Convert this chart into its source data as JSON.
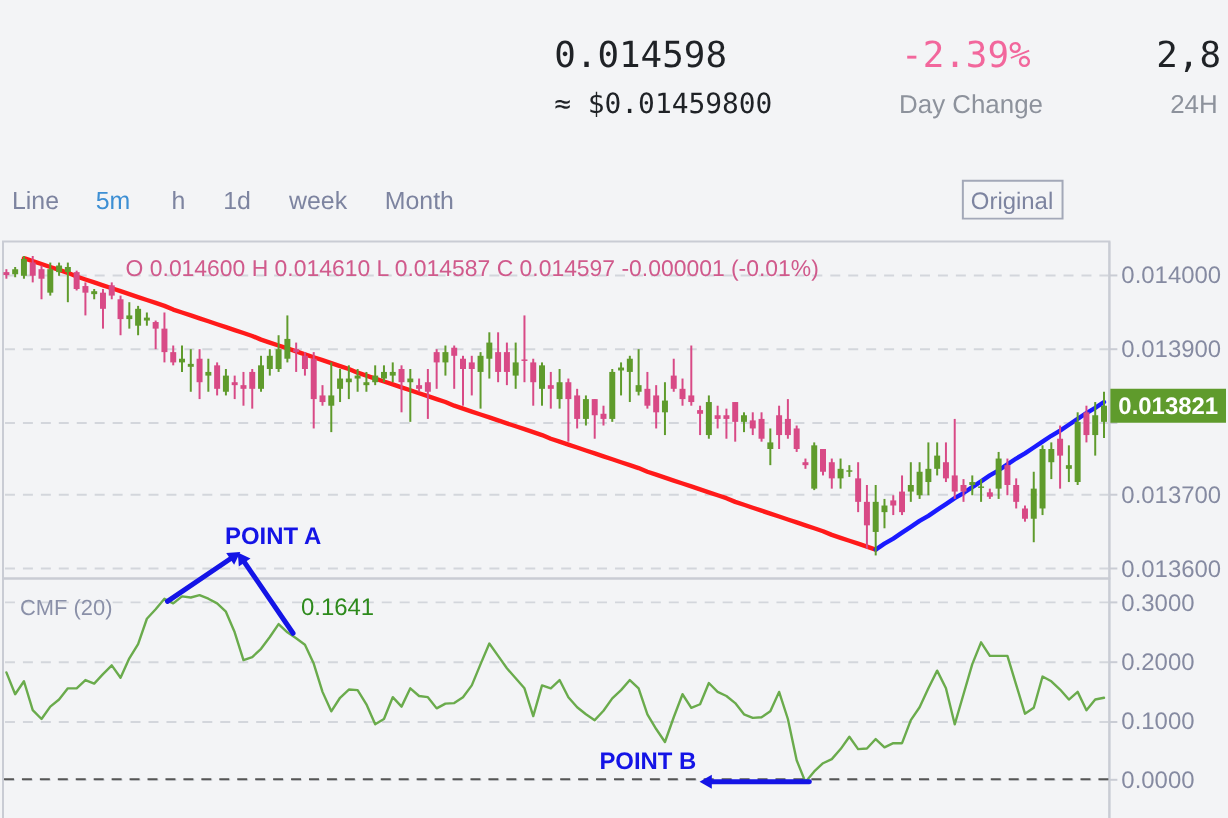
{
  "chart_data": [
    {
      "type": "other",
      "annotations": [
        "0.014598",
        "≈ $0.01459800",
        "-2.39%",
        "Day Change",
        "2,8",
        "24H",
        "Line",
        "5m",
        "h",
        "1d",
        "week",
        "Month",
        "Original"
      ]
    },
    {
      "type": "candlestick",
      "categories": [
        null,
        null,
        null,
        null,
        null,
        null,
        null,
        null,
        null,
        null,
        null,
        null,
        null,
        null,
        null,
        null,
        null,
        null,
        null,
        null,
        null,
        null,
        null,
        null,
        null,
        null,
        null,
        null,
        null,
        null,
        null,
        null,
        null,
        null,
        null,
        null,
        null,
        null,
        null,
        null,
        null,
        null,
        null,
        null,
        null,
        null,
        null,
        null,
        null,
        null,
        null,
        null,
        null,
        null,
        null,
        null,
        null,
        null,
        null,
        null,
        null,
        null,
        null,
        null,
        null,
        null,
        null,
        null,
        null,
        null,
        null,
        null,
        null,
        null,
        null,
        null,
        null,
        null,
        null,
        null,
        null,
        null,
        null,
        null,
        null,
        null,
        null,
        null,
        null,
        null,
        null,
        null,
        null,
        null,
        null,
        null,
        null,
        null,
        null,
        null,
        null,
        null,
        null,
        null,
        null,
        null,
        null,
        null,
        null,
        null,
        null,
        null,
        null,
        null,
        null,
        null,
        null,
        null,
        null,
        null,
        null,
        null,
        null,
        null,
        null,
        null
      ],
      "ohlc": [
        [
          0.014003,
          0.014007,
          0.013994,
          0.013999
        ],
        [
          0.014,
          0.01401,
          0.013996,
          0.014007
        ],
        [
          0.013998,
          0.014025,
          0.013994,
          0.014021
        ],
        [
          0.014016,
          0.014025,
          0.013989,
          0.013998
        ],
        [
          0.014007,
          0.014012,
          0.013966,
          0.013994
        ],
        [
          0.013975,
          0.014016,
          0.013971,
          0.014007
        ],
        [
          0.014003,
          0.014016,
          0.013998,
          0.014012
        ],
        [
          0.014003,
          0.014016,
          0.013962,
          0.01401
        ],
        [
          0.014003,
          0.014005,
          0.013978,
          0.01398
        ],
        [
          0.013984,
          0.013989,
          0.013944,
          0.013975
        ],
        [
          0.013973,
          0.01398,
          0.013966,
          0.013977
        ],
        [
          0.013975,
          0.01398,
          0.013926,
          0.013953
        ],
        [
          0.013985,
          0.013989,
          0.013966,
          0.013971
        ],
        [
          0.013966,
          0.013971,
          0.013917,
          0.013939
        ],
        [
          0.013939,
          0.013962,
          0.013926,
          0.013944
        ],
        [
          0.01393,
          0.013957,
          0.013917,
          0.013953
        ],
        [
          0.013937,
          0.013948,
          0.01393,
          0.013941
        ],
        [
          0.013935,
          0.013937,
          0.013898,
          0.013926
        ],
        [
          0.013926,
          0.013948,
          0.01388,
          0.013894
        ],
        [
          0.013894,
          0.013903,
          0.013876,
          0.01388
        ],
        [
          0.01388,
          0.013903,
          0.013867,
          0.013885
        ],
        [
          0.013874,
          0.013898,
          0.01384,
          0.013878
        ],
        [
          0.013885,
          0.013898,
          0.01383,
          0.013853
        ],
        [
          0.013862,
          0.013885,
          0.01384,
          0.013867
        ],
        [
          0.013876,
          0.01388,
          0.013835,
          0.013844
        ],
        [
          0.01384,
          0.013871,
          0.013835,
          0.013862
        ],
        [
          0.013853,
          0.013862,
          0.01383,
          0.013849
        ],
        [
          0.013849,
          0.013867,
          0.013821,
          0.013844
        ],
        [
          0.013867,
          0.013871,
          0.013817,
          0.013844
        ],
        [
          0.013844,
          0.013889,
          0.01384,
          0.013876
        ],
        [
          0.013871,
          0.013898,
          0.013862,
          0.013889
        ],
        [
          0.013871,
          0.013917,
          0.013867,
          0.013898
        ],
        [
          0.013885,
          0.013944,
          0.01388,
          0.013912
        ],
        [
          0.013898,
          0.013907,
          0.013867,
          0.013894
        ],
        [
          0.013889,
          0.013894,
          0.013862,
          0.013871
        ],
        [
          0.013885,
          0.013894,
          0.01379,
          0.01383
        ],
        [
          0.013835,
          0.013849,
          0.013821,
          0.013826
        ],
        [
          0.013821,
          0.01388,
          0.013785,
          0.013835
        ],
        [
          0.013844,
          0.013871,
          0.013826,
          0.013858
        ],
        [
          0.013853,
          0.013876,
          0.01383,
          0.013858
        ],
        [
          0.013858,
          0.013871,
          0.01384,
          0.013862
        ],
        [
          0.013849,
          0.013867,
          0.01384,
          0.013853
        ],
        [
          0.013853,
          0.013876,
          0.013849,
          0.013862
        ],
        [
          0.013858,
          0.013876,
          0.013853,
          0.013867
        ],
        [
          0.013862,
          0.01388,
          0.013853,
          0.013867
        ],
        [
          0.013871,
          0.013876,
          0.013812,
          0.013853
        ],
        [
          0.013853,
          0.013871,
          0.013799,
          0.013858
        ],
        [
          0.013849,
          0.013858,
          0.01384,
          0.013844
        ],
        [
          0.013853,
          0.013871,
          0.013803,
          0.01384
        ],
        [
          0.013894,
          0.013898,
          0.013844,
          0.01388
        ],
        [
          0.01388,
          0.013903,
          0.013862,
          0.013894
        ],
        [
          0.0139,
          0.013903,
          0.013844,
          0.013889
        ],
        [
          0.013885,
          0.013889,
          0.013821,
          0.013871
        ],
        [
          0.01388,
          0.013889,
          0.013835,
          0.013871
        ],
        [
          0.013867,
          0.013894,
          0.013817,
          0.013889
        ],
        [
          0.013885,
          0.013921,
          0.013858,
          0.013907
        ],
        [
          0.013894,
          0.013921,
          0.013853,
          0.013867
        ],
        [
          0.013894,
          0.013907,
          0.013849,
          0.013867
        ],
        [
          0.013862,
          0.013907,
          0.013844,
          0.01388
        ],
        [
          0.013884,
          0.013944,
          0.013853,
          0.013882
        ],
        [
          0.01388,
          0.013885,
          0.013821,
          0.013853
        ],
        [
          0.013844,
          0.01388,
          0.013821,
          0.013876
        ],
        [
          0.013849,
          0.013867,
          0.013817,
          0.013844
        ],
        [
          0.01383,
          0.013871,
          0.013817,
          0.013853
        ],
        [
          0.013853,
          0.013858,
          0.013772,
          0.01383
        ],
        [
          0.013835,
          0.013844,
          0.01379,
          0.013803
        ],
        [
          0.013803,
          0.013835,
          0.013794,
          0.01383
        ],
        [
          0.01383,
          0.01383,
          0.013776,
          0.013808
        ],
        [
          0.01381,
          0.013821,
          0.013794,
          0.013803
        ],
        [
          0.013803,
          0.013871,
          0.013799,
          0.013867
        ],
        [
          0.013869,
          0.01388,
          0.013835,
          0.013873
        ],
        [
          0.013867,
          0.013889,
          0.013826,
          0.013885
        ],
        [
          0.01384,
          0.013898,
          0.013835,
          0.013849
        ],
        [
          0.013844,
          0.013867,
          0.013817,
          0.013821
        ],
        [
          0.013835,
          0.013849,
          0.01379,
          0.013812
        ],
        [
          0.013812,
          0.013853,
          0.013781,
          0.013828
        ],
        [
          0.013862,
          0.013885,
          0.01384,
          0.013844
        ],
        [
          0.013844,
          0.013858,
          0.013821,
          0.01383
        ],
        [
          0.013835,
          0.013903,
          0.013821,
          0.013826
        ],
        [
          0.013815,
          0.013821,
          0.013781,
          0.01381
        ],
        [
          0.013781,
          0.013835,
          0.013776,
          0.013826
        ],
        [
          0.013808,
          0.013821,
          0.01379,
          0.013803
        ],
        [
          0.013808,
          0.013817,
          0.013776,
          0.013803
        ],
        [
          0.013826,
          0.013826,
          0.013772,
          0.013799
        ],
        [
          0.013799,
          0.013812,
          0.013785,
          0.013808
        ],
        [
          0.013801,
          0.013812,
          0.013781,
          0.01379
        ],
        [
          0.013803,
          0.013812,
          0.013772,
          0.013776
        ],
        [
          0.013762,
          0.01379,
          0.01374,
          0.013771
        ],
        [
          0.013808,
          0.013821,
          0.013762,
          0.013781
        ],
        [
          0.013803,
          0.01383,
          0.013776,
          0.013781
        ],
        [
          0.01379,
          0.013794,
          0.013758,
          0.013762
        ],
        [
          0.013744,
          0.013749,
          0.013735,
          0.01374
        ],
        [
          0.013708,
          0.013771,
          0.013706,
          0.013767
        ],
        [
          0.013762,
          0.013762,
          0.013726,
          0.013731
        ],
        [
          0.013744,
          0.013749,
          0.013708,
          0.013722
        ],
        [
          0.013722,
          0.013749,
          0.013708,
          0.013735
        ],
        [
          0.013731,
          0.01374,
          0.013724,
          0.013733
        ],
        [
          0.013722,
          0.013744,
          0.013676,
          0.01369
        ],
        [
          0.01369,
          0.013713,
          0.013626,
          0.013658
        ],
        [
          0.013649,
          0.013713,
          0.013617,
          0.01369
        ],
        [
          0.013676,
          0.013694,
          0.013654,
          0.013685
        ],
        [
          0.013692,
          0.013699,
          0.013672,
          0.013685
        ],
        [
          0.013704,
          0.013726,
          0.013672,
          0.013676
        ],
        [
          0.013704,
          0.013744,
          0.01369,
          0.013713
        ],
        [
          0.013699,
          0.013744,
          0.013694,
          0.013731
        ],
        [
          0.013717,
          0.013771,
          0.013699,
          0.013735
        ],
        [
          0.013735,
          0.013771,
          0.013726,
          0.013753
        ],
        [
          0.013744,
          0.013771,
          0.013717,
          0.013722
        ],
        [
          0.013726,
          0.013803,
          0.013694,
          0.013704
        ],
        [
          0.013713,
          0.013721,
          0.01369,
          0.013704
        ],
        [
          0.013713,
          0.013726,
          0.013699,
          0.013717
        ],
        [
          0.013709,
          0.013721,
          0.01369,
          0.013711
        ],
        [
          0.013703,
          0.013708,
          0.013694,
          0.013697
        ],
        [
          0.013708,
          0.013758,
          0.013694,
          0.013749
        ],
        [
          0.01374,
          0.013749,
          0.013699,
          0.013713
        ],
        [
          0.013713,
          0.013722,
          0.013681,
          0.01369
        ],
        [
          0.013681,
          0.013685,
          0.013663,
          0.013667
        ],
        [
          0.013667,
          0.013731,
          0.013635,
          0.013708
        ],
        [
          0.013681,
          0.013767,
          0.013672,
          0.013762
        ],
        [
          0.013744,
          0.013771,
          0.013721,
          0.013762
        ],
        [
          0.013776,
          0.013794,
          0.013708,
          0.013753
        ],
        [
          0.013735,
          0.013767,
          0.013717,
          0.01374
        ],
        [
          0.013717,
          0.013812,
          0.013713,
          0.013799
        ],
        [
          0.013812,
          0.013821,
          0.013771,
          0.013781
        ],
        [
          0.013781,
          0.013826,
          0.013753,
          0.013808
        ],
        [
          0.013799,
          0.01384,
          0.013777,
          0.013821
        ]
      ],
      "colors": [
        "#d84a86",
        "#5f9b2c",
        "#5f9b2c",
        "#d84a86",
        "#d84a86",
        "#5f9b2c",
        "#5f9b2c",
        "#5f9b2c",
        "#d84a86",
        "#d84a86",
        "#5f9b2c",
        "#d84a86",
        "#d84a86",
        "#d84a86",
        "#5f9b2c",
        "#5f9b2c",
        "#5f9b2c",
        "#d84a86",
        "#d84a86",
        "#d84a86",
        "#5f9b2c",
        "#5f9b2c",
        "#d84a86",
        "#5f9b2c",
        "#d84a86",
        "#5f9b2c",
        "#d84a86",
        "#d84a86",
        "#d84a86",
        "#5f9b2c",
        "#5f9b2c",
        "#5f9b2c",
        "#5f9b2c",
        "#d84a86",
        "#d84a86",
        "#d84a86",
        "#d84a86",
        "#5f9b2c",
        "#5f9b2c",
        "#5f9b2c",
        "#5f9b2c",
        "#5f9b2c",
        "#5f9b2c",
        "#5f9b2c",
        "#5f9b2c",
        "#d84a86",
        "#5f9b2c",
        "#d84a86",
        "#d84a86",
        "#d84a86",
        "#5f9b2c",
        "#d84a86",
        "#d84a86",
        "#d84a86",
        "#5f9b2c",
        "#5f9b2c",
        "#d84a86",
        "#d84a86",
        "#5f9b2c",
        "#d84a86",
        "#d84a86",
        "#5f9b2c",
        "#d84a86",
        "#5f9b2c",
        "#d84a86",
        "#d84a86",
        "#5f9b2c",
        "#d84a86",
        "#d84a86",
        "#5f9b2c",
        "#5f9b2c",
        "#5f9b2c",
        "#5f9b2c",
        "#d84a86",
        "#d84a86",
        "#5f9b2c",
        "#d84a86",
        "#d84a86",
        "#d84a86",
        "#d84a86",
        "#5f9b2c",
        "#d84a86",
        "#d84a86",
        "#d84a86",
        "#5f9b2c",
        "#d84a86",
        "#d84a86",
        "#5f9b2c",
        "#d84a86",
        "#d84a86",
        "#d84a86",
        "#d84a86",
        "#5f9b2c",
        "#d84a86",
        "#d84a86",
        "#5f9b2c",
        "#5f9b2c",
        "#d84a86",
        "#d84a86",
        "#5f9b2c",
        "#5f9b2c",
        "#d84a86",
        "#d84a86",
        "#5f9b2c",
        "#5f9b2c",
        "#5f9b2c",
        "#5f9b2c",
        "#d84a86",
        "#d84a86",
        "#d84a86",
        "#5f9b2c",
        "#5f9b2c",
        "#d84a86",
        "#5f9b2c",
        "#d84a86",
        "#d84a86",
        "#d84a86",
        "#5f9b2c",
        "#5f9b2c",
        "#5f9b2c",
        "#d84a86",
        "#5f9b2c",
        "#5f9b2c",
        "#d84a86",
        "#5f9b2c",
        "#5f9b2c"
      ],
      "series": [
        {
          "type": "line",
          "color": "#ff1a1a",
          "values": [
            null,
            null,
            0.014022,
            0.014018,
            0.014014,
            0.01401,
            0.014006,
            0.014002,
            0.013997,
            0.013993,
            0.013989,
            0.013985,
            0.013981,
            0.013977,
            0.013973,
            0.013969,
            0.013965,
            0.013961,
            0.013957,
            0.013952,
            0.013948,
            0.013944,
            0.01394,
            0.013936,
            0.013932,
            0.013928,
            0.013924,
            0.01392,
            0.013916,
            0.013911,
            0.013907,
            0.013903,
            0.013899,
            0.013895,
            0.013891,
            0.013887,
            0.013883,
            0.013879,
            0.013875,
            0.013871,
            0.013866,
            0.013862,
            0.013858,
            0.013854,
            0.01385,
            0.013846,
            0.013842,
            0.013838,
            0.013834,
            0.01383,
            0.013826,
            0.013821,
            0.013817,
            0.013813,
            0.013809,
            0.013805,
            0.013801,
            0.013797,
            0.013793,
            0.013789,
            0.013785,
            0.013781,
            0.013776,
            0.013772,
            0.013768,
            0.013764,
            0.01376,
            0.013756,
            0.013752,
            0.013748,
            0.013744,
            0.01374,
            0.013736,
            0.013731,
            0.013727,
            0.013723,
            0.013719,
            0.013715,
            0.013711,
            0.013707,
            0.013703,
            0.013699,
            0.013695,
            0.01369,
            0.013686,
            0.013682,
            0.013678,
            0.013674,
            0.01367,
            0.013666,
            0.013662,
            0.013658,
            0.013654,
            0.01365,
            0.013645,
            0.013641,
            0.013637,
            0.013633,
            0.013629,
            0.013625,
            null,
            null,
            null,
            null,
            null,
            null,
            null,
            null,
            null,
            null,
            null,
            null,
            null,
            null,
            null,
            null,
            null,
            null,
            null,
            null,
            null,
            null,
            null,
            null,
            null,
            null
          ]
        },
        {
          "type": "line",
          "color": "#1a1aff",
          "values": [
            null,
            null,
            null,
            null,
            null,
            null,
            null,
            null,
            null,
            null,
            null,
            null,
            null,
            null,
            null,
            null,
            null,
            null,
            null,
            null,
            null,
            null,
            null,
            null,
            null,
            null,
            null,
            null,
            null,
            null,
            null,
            null,
            null,
            null,
            null,
            null,
            null,
            null,
            null,
            null,
            null,
            null,
            null,
            null,
            null,
            null,
            null,
            null,
            null,
            null,
            null,
            null,
            null,
            null,
            null,
            null,
            null,
            null,
            null,
            null,
            null,
            null,
            null,
            null,
            null,
            null,
            null,
            null,
            null,
            null,
            null,
            null,
            null,
            null,
            null,
            null,
            null,
            null,
            null,
            null,
            null,
            null,
            null,
            null,
            null,
            null,
            null,
            null,
            null,
            null,
            null,
            null,
            null,
            null,
            null,
            null,
            null,
            null,
            null,
            0.013625,
            0.013633,
            0.01364,
            0.013648,
            0.013656,
            0.013664,
            0.013671,
            0.013679,
            0.013687,
            0.013695,
            0.013702,
            0.01371,
            0.013718,
            0.013726,
            0.013733,
            0.013741,
            0.013749,
            0.013756,
            0.013764,
            0.013772,
            0.01378,
            0.013787,
            0.013795,
            0.013803,
            0.013811,
            0.013818,
            0.013826
          ]
        }
      ],
      "ylim": [
        0.013587,
        0.014046
      ],
      "yticks": [
        {
          "value": 0.0136,
          "label": "0.013600"
        },
        {
          "value": 0.0137,
          "label": "0.013700"
        },
        {
          "value": 0.0138,
          "label": null
        },
        {
          "value": 0.0139,
          "label": "0.013900"
        },
        {
          "value": 0.014,
          "label": "0.014000"
        }
      ],
      "grid": "y",
      "tick_labels": "y",
      "annotations": [
        "O 0.014600 H 0.014610 L 0.014587 C 0.014597 -0.000001 (-0.01%)",
        "0.013821"
      ]
    },
    {
      "type": "line",
      "title": "CMF (20)",
      "categories": [
        null,
        null,
        null,
        null,
        null,
        null,
        null,
        null,
        null,
        null,
        null,
        null,
        null,
        null,
        null,
        null,
        null,
        null,
        null,
        null,
        null,
        null,
        null,
        null,
        null,
        null,
        null,
        null,
        null,
        null,
        null,
        null,
        null,
        null,
        null,
        null,
        null,
        null,
        null,
        null,
        null,
        null,
        null,
        null,
        null,
        null,
        null,
        null,
        null,
        null,
        null,
        null,
        null,
        null,
        null,
        null,
        null,
        null,
        null,
        null,
        null,
        null,
        null,
        null,
        null,
        null,
        null,
        null,
        null,
        null,
        null,
        null,
        null,
        null,
        null,
        null,
        null,
        null,
        null,
        null,
        null,
        null,
        null,
        null,
        null,
        null,
        null,
        null,
        null,
        null,
        null,
        null,
        null,
        null,
        null,
        null,
        null,
        null,
        null,
        null,
        null,
        null,
        null,
        null,
        null,
        null,
        null,
        null,
        null,
        null,
        null,
        null,
        null,
        null,
        null,
        null,
        null,
        null,
        null,
        null,
        null,
        null,
        null,
        null,
        null,
        null
      ],
      "series": [
        {
          "color": "#6aab4c",
          "values": [
            0.181,
            0.144,
            0.166,
            0.117,
            0.102,
            0.123,
            0.135,
            0.154,
            0.154,
            0.168,
            0.162,
            0.178,
            0.193,
            0.172,
            0.205,
            0.229,
            0.272,
            0.288,
            0.306,
            0.298,
            0.31,
            0.308,
            0.312,
            0.306,
            0.298,
            0.284,
            0.249,
            0.202,
            0.207,
            0.221,
            0.241,
            0.263,
            0.249,
            0.239,
            0.228,
            0.196,
            0.148,
            0.115,
            0.138,
            0.152,
            0.151,
            0.127,
            0.093,
            0.102,
            0.139,
            0.123,
            0.154,
            0.141,
            0.139,
            0.12,
            0.128,
            0.129,
            0.139,
            0.159,
            0.195,
            0.23,
            0.209,
            0.188,
            0.171,
            0.154,
            0.107,
            0.159,
            0.154,
            0.168,
            0.139,
            0.122,
            0.11,
            0.1,
            0.116,
            0.137,
            0.151,
            0.168,
            0.154,
            0.11,
            0.085,
            0.063,
            0.105,
            0.144,
            0.121,
            0.127,
            0.163,
            0.148,
            0.141,
            0.129,
            0.11,
            0.104,
            0.105,
            0.115,
            0.148,
            0.102,
            0.032,
            -0.005,
            0.013,
            0.027,
            0.034,
            0.051,
            0.072,
            0.051,
            0.052,
            0.068,
            0.054,
            0.061,
            0.061,
            0.1,
            0.122,
            0.154,
            0.184,
            0.154,
            0.093,
            0.144,
            0.195,
            0.232,
            0.209,
            0.209,
            0.209,
            0.16,
            0.111,
            0.121,
            0.174,
            0.166,
            0.152,
            0.135,
            0.148,
            0.117,
            0.135,
            0.138
          ]
        }
      ],
      "ylim": [
        -0.067,
        0.342
      ],
      "yticks": [
        {
          "value": 0,
          "label": "0.0000"
        },
        {
          "value": 0.1,
          "label": "0.1000"
        },
        {
          "value": 0.2,
          "label": "0.2000"
        },
        {
          "value": 0.3,
          "label": "0.3000"
        }
      ],
      "grid": "y",
      "tick_labels": "y",
      "ref_lines": [
        {
          "axis": "y",
          "value": 0,
          "color": "#555555",
          "line_style": "dashed"
        }
      ],
      "annotations": [
        "0.1641",
        "POINT A",
        "POINT B"
      ]
    }
  ]
}
